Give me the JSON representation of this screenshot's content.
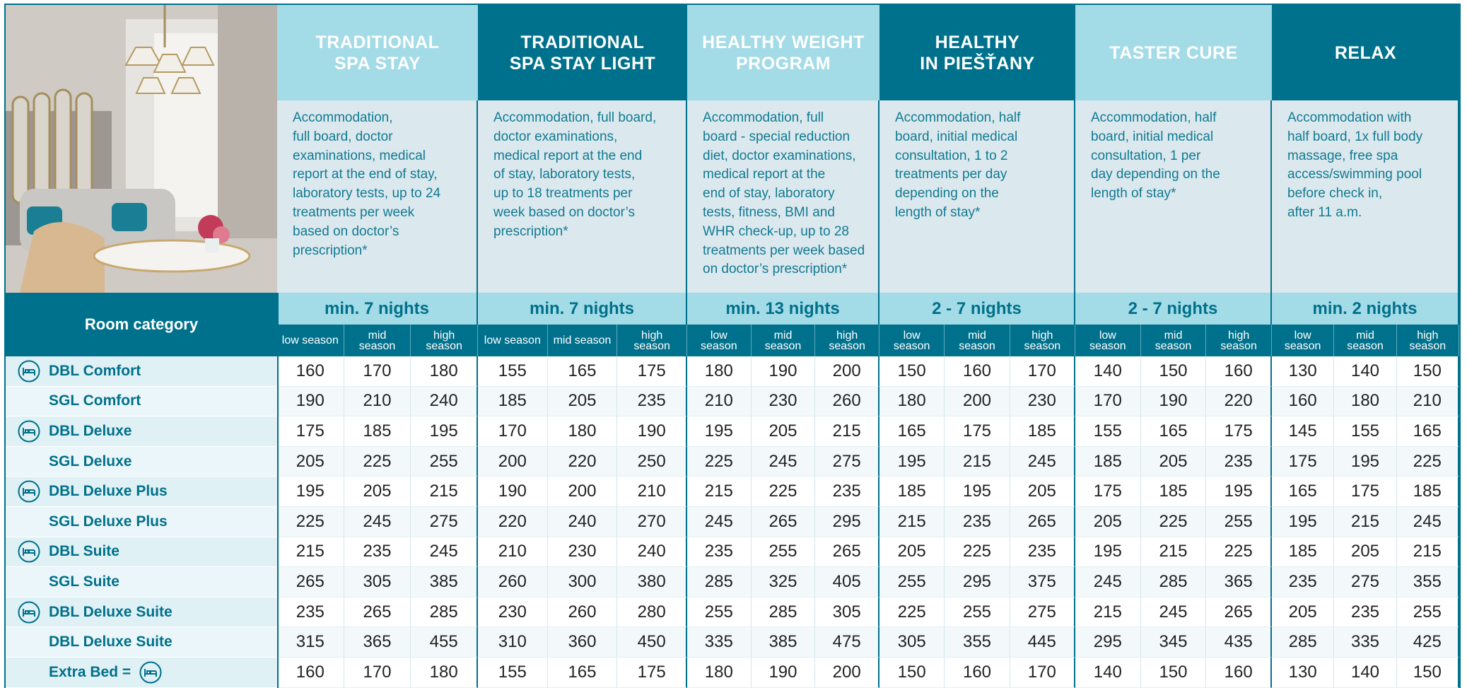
{
  "header": {
    "room_category": "Room category",
    "seasons": [
      "low season",
      "mid season",
      "high season"
    ]
  },
  "packages": [
    {
      "title": [
        "TRADITIONAL",
        "SPA STAY"
      ],
      "description": [
        "Accommodation,",
        "full board, doctor",
        "examinations, medical",
        "report at the end of stay,",
        "laboratory tests, up to 24",
        "treatments per week",
        "based on doctor’s",
        "prescription*"
      ],
      "min_stay": "min. 7 nights"
    },
    {
      "title": [
        "TRADITIONAL",
        "SPA STAY LIGHT"
      ],
      "description": [
        "Accommodation, full board,",
        "doctor examinations,",
        "medical report at the end",
        "of stay, laboratory tests,",
        "up to 18 treatments per",
        "week based on doctor’s",
        "prescription*"
      ],
      "min_stay": "min. 7 nights"
    },
    {
      "title": [
        "HEALTHY WEIGHT",
        "PROGRAM"
      ],
      "description": [
        "Accommodation, full",
        "board - special reduction",
        "diet, doctor examinations,",
        "medical report at the",
        "end of stay, laboratory",
        "tests, fitness, BMI and",
        "WHR check-up, up to 28",
        "treatments per week based",
        "on doctor’s prescription*"
      ],
      "min_stay": "min. 13 nights"
    },
    {
      "title": [
        "HEALTHY",
        "IN PIEŠŤANY"
      ],
      "description": [
        "Accommodation, half",
        "board, initial medical",
        "consultation, 1 to 2",
        "treatments per day",
        "depending on the",
        "length of stay*"
      ],
      "min_stay": "2 - 7 nights"
    },
    {
      "title": [
        "TASTER CURE"
      ],
      "description": [
        "Accommodation, half",
        "board, initial medical",
        "consultation, 1 per",
        "day depending on the",
        "length of stay*"
      ],
      "min_stay": "2 - 7 nights"
    },
    {
      "title": [
        "RELAX"
      ],
      "description": [
        "Accommodation with",
        "half board, 1x full body",
        "massage, free spa",
        "access/swimming pool",
        "before check in,",
        "after 11 a.m."
      ],
      "min_stay": "min. 2 nights"
    }
  ],
  "rows": [
    {
      "name": "DBL Comfort",
      "icon": "left",
      "prices": [
        160,
        170,
        180,
        155,
        165,
        175,
        180,
        190,
        200,
        150,
        160,
        170,
        140,
        150,
        160,
        130,
        140,
        150
      ]
    },
    {
      "name": "SGL Comfort",
      "prices": [
        190,
        210,
        240,
        185,
        205,
        235,
        210,
        230,
        260,
        180,
        200,
        230,
        170,
        190,
        220,
        160,
        180,
        210
      ]
    },
    {
      "name": "DBL Deluxe",
      "icon": "left",
      "prices": [
        175,
        185,
        195,
        170,
        180,
        190,
        195,
        205,
        215,
        165,
        175,
        185,
        155,
        165,
        175,
        145,
        155,
        165
      ]
    },
    {
      "name": "SGL Deluxe",
      "prices": [
        205,
        225,
        255,
        200,
        220,
        250,
        225,
        245,
        275,
        195,
        215,
        245,
        185,
        205,
        235,
        175,
        195,
        225
      ]
    },
    {
      "name": "DBL Deluxe Plus",
      "icon": "left",
      "prices": [
        195,
        205,
        215,
        190,
        200,
        210,
        215,
        225,
        235,
        185,
        195,
        205,
        175,
        185,
        195,
        165,
        175,
        185
      ]
    },
    {
      "name": "SGL Deluxe Plus",
      "prices": [
        225,
        245,
        275,
        220,
        240,
        270,
        245,
        265,
        295,
        215,
        235,
        265,
        205,
        225,
        255,
        195,
        215,
        245
      ]
    },
    {
      "name": "DBL Suite",
      "icon": "left",
      "prices": [
        215,
        235,
        245,
        210,
        230,
        240,
        235,
        255,
        265,
        205,
        225,
        235,
        195,
        215,
        225,
        185,
        205,
        215
      ]
    },
    {
      "name": "SGL Suite",
      "prices": [
        265,
        305,
        385,
        260,
        300,
        380,
        285,
        325,
        405,
        255,
        295,
        375,
        245,
        285,
        365,
        235,
        275,
        355
      ]
    },
    {
      "name": "DBL Deluxe Suite",
      "icon": "left",
      "prices": [
        235,
        265,
        285,
        230,
        260,
        280,
        255,
        285,
        305,
        225,
        255,
        275,
        215,
        245,
        265,
        205,
        235,
        255
      ]
    },
    {
      "name": "DBL Deluxe Suite",
      "prices": [
        315,
        365,
        455,
        310,
        360,
        450,
        335,
        385,
        475,
        305,
        355,
        445,
        295,
        345,
        435,
        285,
        335,
        425
      ]
    },
    {
      "name": "Extra Bed =",
      "icon": "right",
      "prices": [
        160,
        170,
        180,
        155,
        165,
        175,
        180,
        190,
        200,
        150,
        160,
        170,
        140,
        150,
        160,
        130,
        140,
        150
      ]
    }
  ]
}
